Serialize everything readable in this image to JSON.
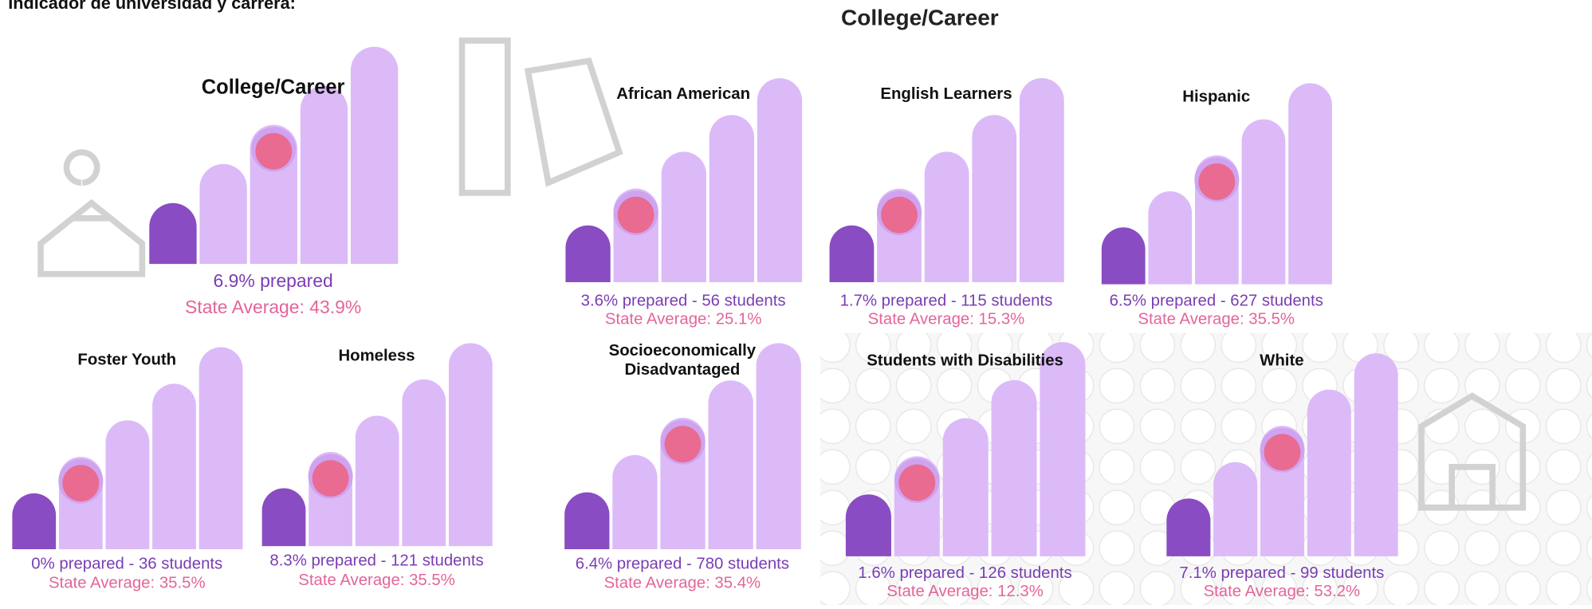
{
  "heading": "Indicador de universidad y carrera:",
  "section_title": "College/Career",
  "panels": [
    {
      "title": "College/Career",
      "prepared": "6.9% prepared",
      "state_average": "State Average: 43.9%",
      "level": 3
    },
    {
      "title": "African American",
      "prepared": "3.6% prepared - 56 students",
      "state_average": "State Average: 25.1%",
      "level": 2
    },
    {
      "title": "English Learners",
      "prepared": "1.7% prepared - 115 students",
      "state_average": "State Average: 15.3%",
      "level": 2
    },
    {
      "title": "Hispanic",
      "prepared": "6.5% prepared - 627 students",
      "state_average": "State Average: 35.5%",
      "level": 3
    },
    {
      "title": "Foster Youth",
      "prepared": "0% prepared - 36 students",
      "state_average": "State Average: 35.5%",
      "level": 2
    },
    {
      "title": "Homeless",
      "prepared": "8.3% prepared - 121 students",
      "state_average": "State Average: 35.5%",
      "level": 2
    },
    {
      "title": [
        "Socioeconomically",
        "Disadvantaged"
      ],
      "prepared": "6.4% prepared - 780 students",
      "state_average": "State Average: 35.4%",
      "level": 3
    },
    {
      "title": "Students with Disabilities",
      "prepared": "1.6% prepared - 126 students",
      "state_average": "State Average: 12.3%",
      "level": 2
    },
    {
      "title": "White",
      "prepared": "7.1% prepared - 99 students",
      "state_average": "State Average: 53.2%",
      "level": 3
    }
  ]
}
